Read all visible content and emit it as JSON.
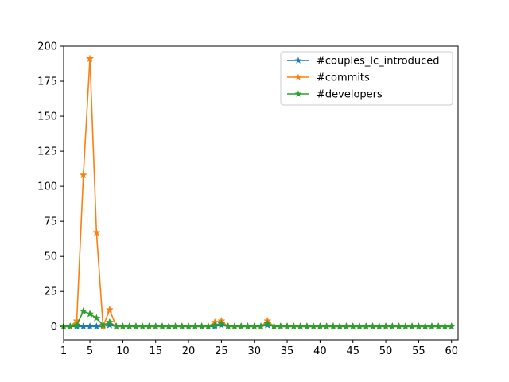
{
  "chart_data": {
    "type": "line",
    "title": "",
    "xlabel": "",
    "ylabel": "",
    "xlim": [
      1,
      61
    ],
    "ylim": [
      -9.5,
      200
    ],
    "x_ticks": [
      1,
      5,
      10,
      15,
      20,
      25,
      30,
      35,
      40,
      45,
      50,
      55,
      60
    ],
    "y_ticks": [
      0,
      25,
      50,
      75,
      100,
      125,
      150,
      175,
      200
    ],
    "grid": false,
    "legend_position": "top-right",
    "x": [
      1,
      2,
      3,
      4,
      5,
      6,
      7,
      8,
      9,
      10,
      11,
      12,
      13,
      14,
      15,
      16,
      17,
      18,
      19,
      20,
      21,
      22,
      23,
      24,
      25,
      26,
      27,
      28,
      29,
      30,
      31,
      32,
      33,
      34,
      35,
      36,
      37,
      38,
      39,
      40,
      41,
      42,
      43,
      44,
      45,
      46,
      47,
      48,
      49,
      50,
      51,
      52,
      53,
      54,
      55,
      56,
      57,
      58,
      59,
      60
    ],
    "series": [
      {
        "name": "#couples_lc_introduced",
        "color": "#1f77b4",
        "values": [
          0,
          0,
          0,
          0,
          0,
          0,
          0,
          1,
          0,
          0,
          0,
          0,
          0,
          0,
          0,
          0,
          0,
          0,
          0,
          0,
          0,
          0,
          0,
          0,
          1,
          0,
          0,
          0,
          0,
          0,
          0,
          1,
          0,
          0,
          0,
          0,
          0,
          0,
          0,
          0,
          0,
          0,
          0,
          0,
          0,
          0,
          0,
          0,
          0,
          0,
          0,
          0,
          0,
          0,
          0,
          0,
          0,
          0,
          0,
          0
        ]
      },
      {
        "name": "#commits",
        "color": "#ff7f0e",
        "values": [
          0,
          0,
          4,
          108,
          191,
          67,
          0,
          12,
          0,
          0,
          0,
          0,
          0,
          0,
          0,
          0,
          0,
          0,
          0,
          0,
          0,
          0,
          0,
          3,
          4,
          0,
          0,
          0,
          0,
          0,
          0,
          4,
          0,
          0,
          0,
          0,
          0,
          0,
          0,
          0,
          0,
          0,
          0,
          0,
          0,
          0,
          0,
          0,
          0,
          0,
          0,
          0,
          0,
          0,
          0,
          0,
          0,
          0,
          0,
          0
        ]
      },
      {
        "name": "#developers",
        "color": "#2ca02c",
        "values": [
          0,
          0,
          1,
          11,
          9,
          6,
          1,
          3,
          0,
          0,
          0,
          0,
          0,
          0,
          0,
          0,
          0,
          0,
          0,
          0,
          0,
          0,
          0,
          1,
          2,
          0,
          0,
          0,
          0,
          0,
          0,
          2,
          0,
          0,
          0,
          0,
          0,
          0,
          0,
          0,
          0,
          0,
          0,
          0,
          0,
          0,
          0,
          0,
          0,
          0,
          0,
          0,
          0,
          0,
          0,
          0,
          0,
          0,
          0,
          0
        ]
      }
    ]
  }
}
